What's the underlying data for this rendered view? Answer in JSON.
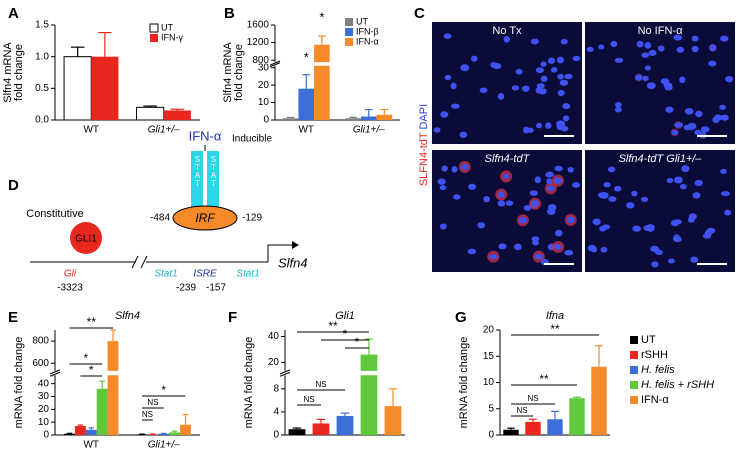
{
  "chart_data": [
    {
      "type": "bar",
      "panel": "A",
      "ylabel": [
        "Slfn4 mRNA",
        "fold change"
      ],
      "categories": [
        "WT",
        "Gli1+/–"
      ],
      "series": [
        {
          "name": "UT",
          "color": "#ffffff",
          "values": [
            1.0,
            0.2
          ],
          "errors": [
            0.15,
            0.02
          ]
        },
        {
          "name": "IFN-γ",
          "color": "#e8281e",
          "values": [
            1.0,
            0.15
          ],
          "errors": [
            0.38,
            0.02
          ]
        }
      ],
      "ylim": [
        0,
        1.5
      ],
      "yticks": [
        {
          "value": 0,
          "label": "0.0"
        },
        0.5,
        {
          "value": 1,
          "label": "1.0"
        },
        1.5
      ],
      "legend_loc": "upper right"
    },
    {
      "type": "bar",
      "panel": "B",
      "ylabel": [
        "Slfn4 mRNA",
        "fold change"
      ],
      "categories": [
        "WT",
        "Gli1+/–"
      ],
      "series": [
        {
          "name": "UT",
          "color": "#808080",
          "values": [
            1,
            1
          ],
          "errors": [
            0.5,
            0.5
          ]
        },
        {
          "name": "IFN-β",
          "color": "#3c6fd8",
          "values": [
            18,
            2
          ],
          "errors": [
            8,
            4
          ]
        },
        {
          "name": "IFN-α",
          "color": "#f58a2a",
          "values": [
            1150,
            3
          ],
          "errors": [
            200,
            3
          ]
        }
      ],
      "ylim": [
        0,
        1600
      ],
      "ybreak": [
        30,
        800
      ],
      "yticks": [
        0,
        10,
        20,
        30,
        800,
        1200,
        1600
      ],
      "significance": [
        "*",
        "*"
      ],
      "legend_loc": "upper right"
    },
    {
      "type": "bar",
      "panel": "E",
      "title": "Slfn4",
      "ylabel": [
        "mRNA fold change"
      ],
      "categories": [
        "WT",
        "Gli1+/–"
      ],
      "series": [
        {
          "color": "#000000",
          "values": [
            1,
            0.5
          ],
          "errors": [
            0.3,
            0.2
          ]
        },
        {
          "color": "#e8281e",
          "values": [
            7,
            0.5
          ],
          "errors": [
            0.8,
            0.2
          ]
        },
        {
          "color": "#3c6fd8",
          "values": [
            4,
            1
          ],
          "errors": [
            1.5,
            0.3
          ]
        },
        {
          "color": "#5fc93a",
          "values": [
            36,
            2
          ],
          "errors": [
            6,
            1
          ]
        },
        {
          "color": "#f58a2a",
          "values": [
            800,
            8
          ],
          "errors": [
            100,
            8
          ]
        }
      ],
      "ylim": [
        0,
        900
      ],
      "ybreak": [
        45,
        550
      ],
      "yticks": [
        0,
        10,
        20,
        30,
        40,
        600,
        800
      ],
      "comparisons": [
        "**",
        "*",
        "*",
        "*",
        "NS",
        "NS"
      ]
    },
    {
      "type": "bar",
      "panel": "F",
      "title": "Gli1",
      "ylabel": [
        "mRNA fold change"
      ],
      "categories": [
        null,
        null,
        null,
        null,
        null
      ],
      "values": [
        1,
        2,
        3.3,
        26,
        5
      ],
      "errors": [
        0.2,
        0.7,
        0.5,
        12,
        3
      ],
      "colors": [
        "#000000",
        "#e8281e",
        "#3c6fd8",
        "#5fc93a",
        "#f58a2a"
      ],
      "ylim": [
        0,
        45
      ],
      "ybreak": [
        10,
        15
      ],
      "yticks": [
        0,
        4,
        8,
        20,
        40
      ],
      "comparisons": [
        "**",
        "*",
        "*",
        "NS",
        "NS"
      ]
    },
    {
      "type": "bar",
      "panel": "G",
      "title": "Ifna",
      "ylabel": [
        "mRNA fold change"
      ],
      "categories": [
        null,
        null,
        null,
        null,
        null
      ],
      "values": [
        1,
        2.5,
        3,
        7,
        13
      ],
      "errors": [
        0.3,
        0.5,
        1.5,
        0.2,
        4
      ],
      "colors": [
        "#000000",
        "#e8281e",
        "#3c6fd8",
        "#5fc93a",
        "#f58a2a"
      ],
      "ylim": [
        0,
        20
      ],
      "yticks": [
        0,
        5,
        10,
        15,
        20
      ],
      "comparisons": [
        "**",
        "**",
        "NS",
        "NS"
      ],
      "legend": [
        {
          "name": "UT",
          "color": "#000000"
        },
        {
          "name": "rSHH",
          "color": "#e8281e"
        },
        {
          "name": "H. felis",
          "color": "#3c6fd8"
        },
        {
          "name": "H. felis + rSHH",
          "color": "#5fc93a"
        },
        {
          "name": "IFN-α",
          "color": "#f58a2a"
        }
      ],
      "legend_loc": "right"
    }
  ],
  "micrographs": {
    "panel": "C",
    "stain_label": [
      "SLFN4-tdT",
      "DAPI"
    ],
    "images": [
      "No Tx",
      "No IFN-α",
      "Slfn4-tdT",
      "Slfn4-tdT Gli1+/–"
    ]
  },
  "diagram": {
    "panel": "D",
    "stimulus": "IFN-α",
    "inducible": "Inducible",
    "constitutive": "Constitutive",
    "factors": [
      "GLI1",
      "STAT",
      "STAT",
      "IRF"
    ],
    "positions": [
      "-484",
      "-129",
      "-3323",
      "-239",
      "-157"
    ],
    "sites": [
      "Gli",
      "Stat1",
      "ISRE",
      "Stat1"
    ],
    "gene": "Slfn4"
  }
}
